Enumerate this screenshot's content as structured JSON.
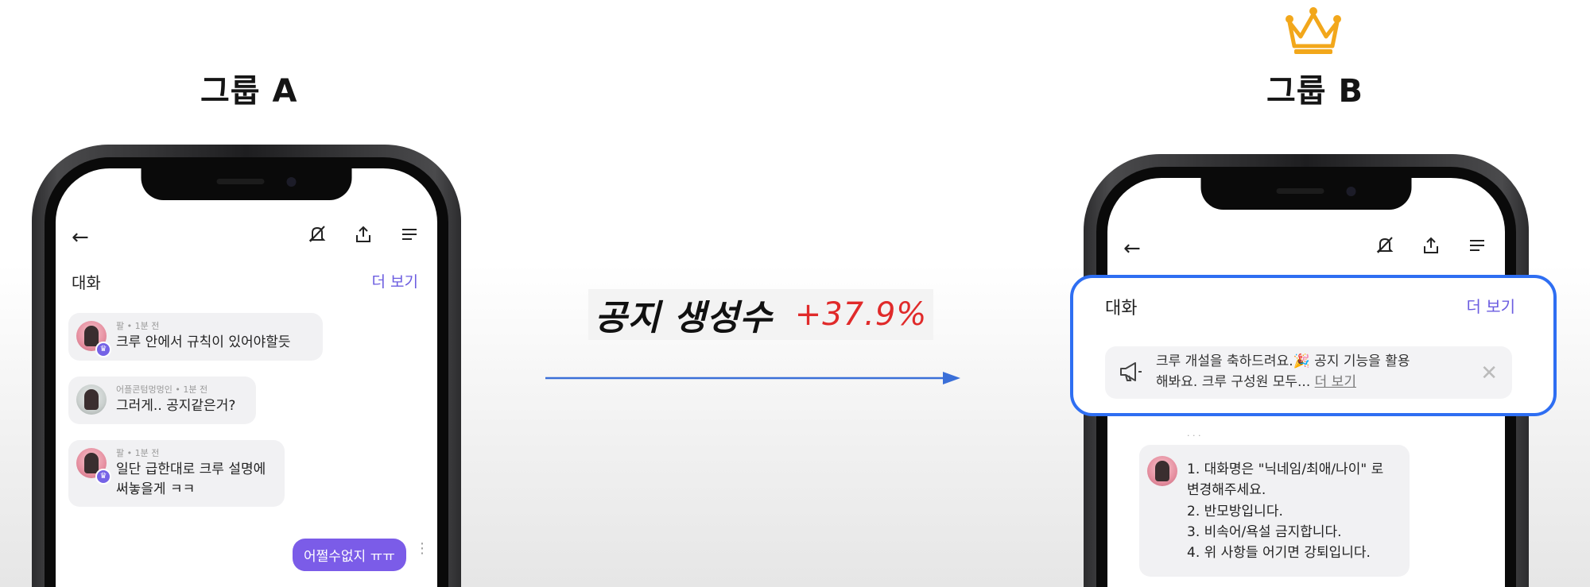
{
  "group_a": {
    "title": "그룹 A"
  },
  "group_b": {
    "title": "그룹 B"
  },
  "winner_icon": "crown-icon",
  "metric": {
    "label": "공지 생성수",
    "value": "+37.9%",
    "value_color": "#e02a2a"
  },
  "phone_a": {
    "topbar": {
      "back_icon": "back-arrow-icon",
      "icons": [
        "mute-bell-icon",
        "share-icon",
        "menu-icon"
      ]
    },
    "section_label": "대화",
    "more_label": "더 보기",
    "messages": [
      {
        "author": "팔",
        "time": "1분 전",
        "text": "크루 안에서 규칙이 있어야할듯"
      },
      {
        "author": "어플콘텀멍멍인",
        "time": "1분 전",
        "text": "그러게.. 공지같은거?"
      },
      {
        "author": "팔",
        "time": "1분 전",
        "text_line1": "일단 급한대로 크루 설명에",
        "text_line2": "써놓을게 ㅋㅋ"
      }
    ],
    "my_message": "어쩔수없지 ㅠㅠ",
    "accent_color": "#7b5ce8"
  },
  "phone_b": {
    "topbar": {
      "back_icon": "back-arrow-icon",
      "icons": [
        "mute-bell-icon",
        "share-icon",
        "menu-icon"
      ]
    },
    "section_label": "대화",
    "more_label": "더 보기",
    "notice": {
      "line1": "크루 개설을 축하드려요.🎉 공지 기능을 활용",
      "line2": "해봐요. 크루 구성원 모두...",
      "more": "더 보기",
      "close": "✕"
    },
    "rules": [
      "1. 대화명은 \"닉네임/최애/나이\" 로",
      "변경해주세요.",
      "2. 반모방입니다.",
      "3. 비속어/욕설 금지합니다.",
      "4. 위 사항들 어기면 강퇴입니다."
    ],
    "highlight_color": "#2e6ef2"
  }
}
